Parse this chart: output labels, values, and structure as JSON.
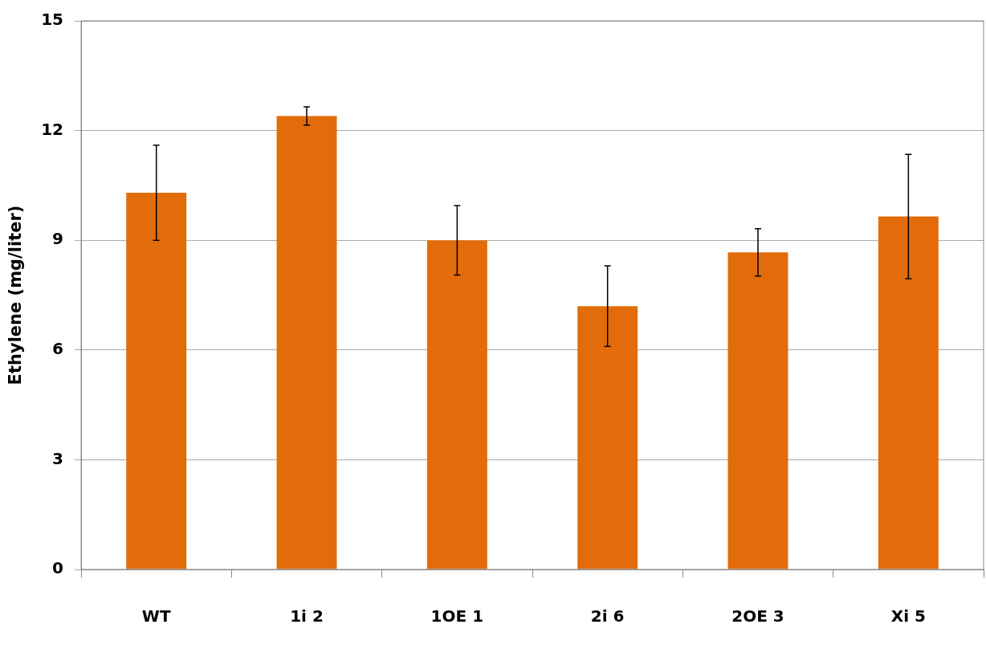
{
  "chart_data": {
    "type": "bar",
    "ylabel": "Ethylene (mg/liter)",
    "categories": [
      "WT",
      "1i 2",
      "1OE 1",
      "2i 6",
      "2OE 3",
      "Xi 5"
    ],
    "values": [
      10.3,
      12.4,
      9.0,
      7.2,
      8.67,
      9.65
    ],
    "errors": [
      1.3,
      0.25,
      0.95,
      1.1,
      0.65,
      1.7
    ],
    "color": "#e36c0a",
    "ylim": [
      0,
      15
    ],
    "yticks": [
      0,
      3,
      6,
      9,
      12,
      15
    ],
    "grid": "y",
    "legend": false
  }
}
